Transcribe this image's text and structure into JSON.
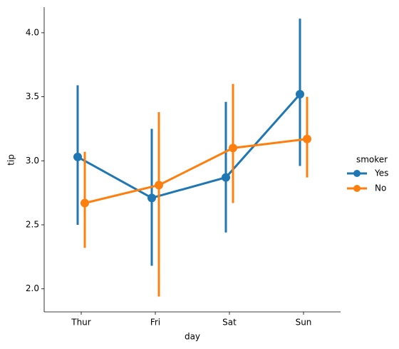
{
  "chart_data": {
    "type": "pointplot",
    "x_label": "day",
    "y_label": "tip",
    "categories": [
      "Thur",
      "Fri",
      "Sat",
      "Sun"
    ],
    "ylim": [
      1.82,
      4.2
    ],
    "yticks": [
      {
        "value": 2,
        "label": "2.0"
      },
      {
        "value": 2.5,
        "label": "2.5"
      },
      {
        "value": 3,
        "label": "3.0"
      },
      {
        "value": 3.5,
        "label": "3.5"
      },
      {
        "value": 4,
        "label": "4.0"
      }
    ],
    "legend_title": "smoker",
    "legend_position": "right",
    "series": [
      {
        "name": "Yes",
        "color": "#1f77b4",
        "values": [
          3.03,
          2.71,
          2.87,
          3.52
        ],
        "ci_low": [
          2.5,
          2.18,
          2.44,
          2.96
        ],
        "ci_high": [
          3.59,
          3.25,
          3.46,
          4.11
        ]
      },
      {
        "name": "No",
        "color": "#ff7f0e",
        "values": [
          2.67,
          2.81,
          3.1,
          3.17
        ],
        "ci_low": [
          2.32,
          1.94,
          2.67,
          2.87
        ],
        "ci_high": [
          3.07,
          3.38,
          3.6,
          3.5
        ]
      }
    ]
  }
}
